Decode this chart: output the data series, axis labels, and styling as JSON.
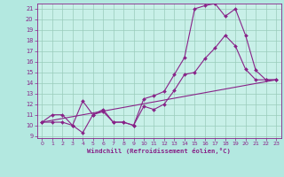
{
  "xlabel": "Windchill (Refroidissement éolien,°C)",
  "xlim": [
    -0.5,
    23.5
  ],
  "ylim": [
    8.8,
    21.5
  ],
  "yticks": [
    9,
    10,
    11,
    12,
    13,
    14,
    15,
    16,
    17,
    18,
    19,
    20,
    21
  ],
  "xticks": [
    0,
    1,
    2,
    3,
    4,
    5,
    6,
    7,
    8,
    9,
    10,
    11,
    12,
    13,
    14,
    15,
    16,
    17,
    18,
    19,
    20,
    21,
    22,
    23
  ],
  "bg_color": "#b3e8e0",
  "plot_bg": "#c8f0e8",
  "line_color": "#882288",
  "grid_color": "#99ccbb",
  "line1_x": [
    0,
    1,
    2,
    3,
    4,
    5,
    6,
    7,
    8,
    9,
    10,
    11,
    12,
    13,
    14,
    15,
    16,
    17,
    18,
    19,
    20,
    21,
    22,
    23
  ],
  "line1_y": [
    10.3,
    11.0,
    11.0,
    10.0,
    9.3,
    11.0,
    11.5,
    10.3,
    10.3,
    10.0,
    12.5,
    12.8,
    13.2,
    14.8,
    16.4,
    21.0,
    21.3,
    21.5,
    20.3,
    21.0,
    18.5,
    15.2,
    14.3,
    14.3
  ],
  "line2_x": [
    0,
    1,
    2,
    3,
    4,
    5,
    6,
    7,
    8,
    9,
    10,
    11,
    12,
    13,
    14,
    15,
    16,
    17,
    18,
    19,
    20,
    21,
    22,
    23
  ],
  "line2_y": [
    10.3,
    10.3,
    10.3,
    10.0,
    12.3,
    11.0,
    11.3,
    10.3,
    10.3,
    10.0,
    11.8,
    11.5,
    12.0,
    13.3,
    14.8,
    15.0,
    16.3,
    17.3,
    18.5,
    17.5,
    15.3,
    14.3,
    14.3,
    14.3
  ],
  "line3_x": [
    0,
    23
  ],
  "line3_y": [
    10.3,
    14.3
  ]
}
